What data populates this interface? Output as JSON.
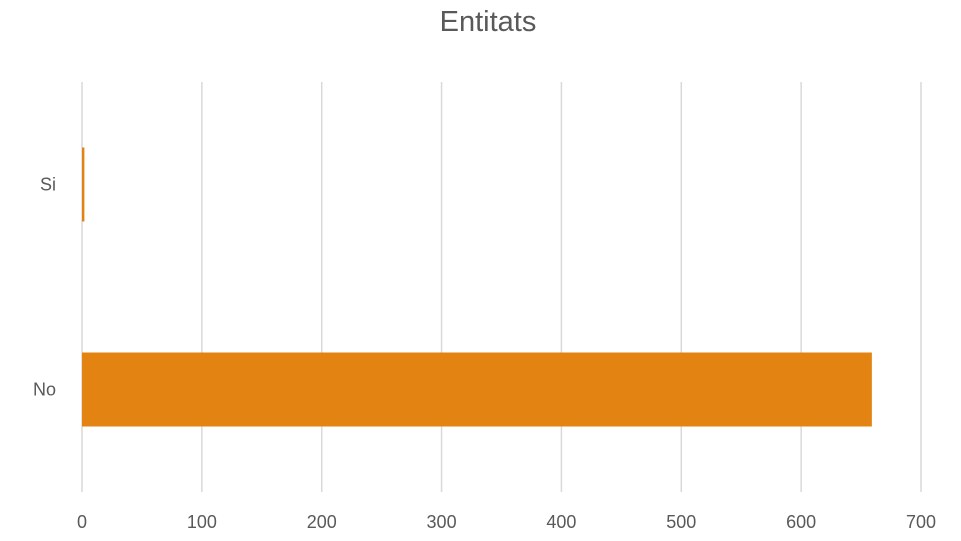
{
  "chart_data": {
    "type": "bar",
    "orientation": "horizontal",
    "title": "Entitats",
    "categories": [
      "Si",
      "No"
    ],
    "values": [
      2,
      659
    ],
    "xlim": [
      0,
      700
    ],
    "xticks": [
      0,
      100,
      200,
      300,
      400,
      500,
      600,
      700
    ],
    "grid": "vertical",
    "legend": "none",
    "bar_color": "#E38312",
    "grid_color": "#D9D9D9",
    "text_color": "#595959"
  }
}
